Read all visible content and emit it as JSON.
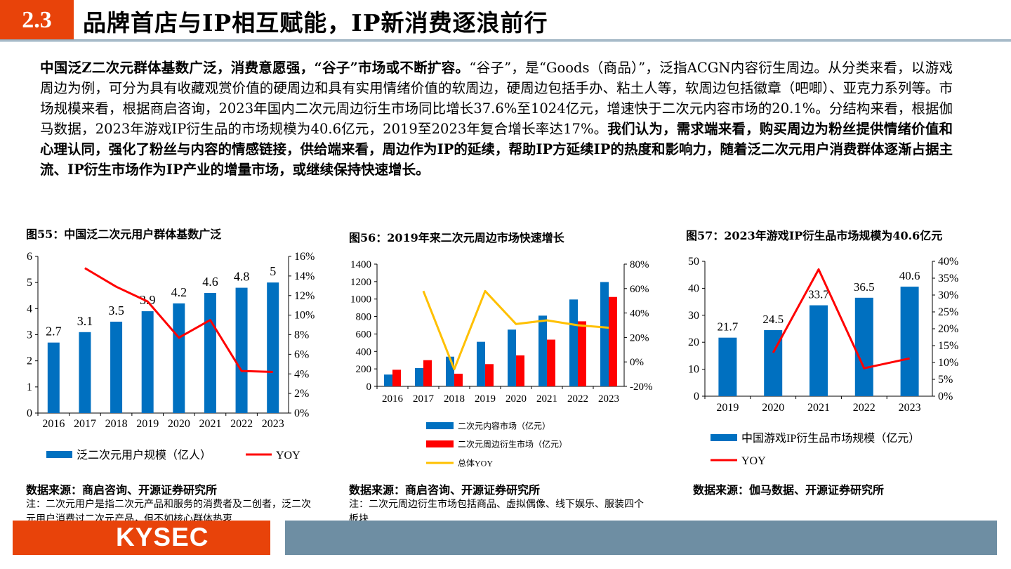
{
  "header": {
    "section": "2.3",
    "title": "品牌首店与IP相互赋能，IP新消费逐浪前行"
  },
  "body": {
    "bold_lead": "中国泛Z二次元群体基数广泛，消费意愿强，“谷子”市场或不断扩容。",
    "text": "“谷子”，是“Goods（商品）”，泛指ACGN内容衍生周边。从分类来看，以游戏周边为例，可分为具有收藏观赏价值的硬周边和具有实用情绪价值的软周边，硬周边包括手办、粘土人等，软周边包括徽章（吧唧）、亚克力系列等。市场规模来看，根据商启咨询，2023年国内二次元周边衍生市场同比增长37.6%至1024亿元，增速快于二次元内容市场的20.1%。分结构来看，根据伽马数据，2023年游戏IP衍生品的市场规模为40.6亿元，2019至2023年复合增长率达17%。",
    "bold_conclusion": "我们认为，需求端来看，购买周边为粉丝提供情绪价值和心理认同，强化了粉丝与内容的情感链接，供给端来看，周边作为IP的延续，帮助IP方延续IP的热度和影响力，随着泛二次元用户消费群体逐渐占据主流、IP衍生市场作为IP产业的增量市场，或继续保持快速增长。"
  },
  "figures": [
    {
      "source": "数据来源：商启咨询、开源证券研究所",
      "note": "注：二次元用户是指二次元产品和服务的消费者及二创者，泛二次元用户消费过二次元产品，但不如核心群体热衷"
    },
    {
      "source": "数据来源：商启咨询、开源证券研究所",
      "note": "注：二次元周边衍生市场包括商品、虚拟偶像、线下娱乐、服装四个板块"
    },
    {
      "source": "数据来源：伽马数据、开源证券研究所",
      "note": ""
    }
  ],
  "footer": {
    "logo": "KYSEC"
  },
  "colors": {
    "accent": "#e8430a",
    "blue": "#0070c0",
    "red": "#ff0000",
    "yellow": "#ffc000",
    "footer_gray": "#6e8ea3"
  },
  "chart_data": [
    {
      "type": "bar",
      "title": "图55：中国泛二次元用户群体基数广泛",
      "categories": [
        "2016",
        "2017",
        "2018",
        "2019",
        "2020",
        "2021",
        "2022",
        "2023"
      ],
      "ylim": [
        0,
        6
      ],
      "yticks": [
        0,
        1,
        2,
        3,
        4,
        5,
        6
      ],
      "y2lim": [
        0,
        16
      ],
      "y2ticks": [
        "0%",
        "2%",
        "4%",
        "6%",
        "8%",
        "10%",
        "12%",
        "14%",
        "16%"
      ],
      "series": [
        {
          "name": "泛二次元用户规模（亿人）",
          "kind": "bar",
          "axis": "left",
          "color": "#0070c0",
          "values": [
            2.7,
            3.1,
            3.5,
            3.9,
            4.2,
            4.6,
            4.8,
            5
          ],
          "labels": [
            "2.7",
            "3.1",
            "3.5",
            "3.9",
            "4.2",
            "4.6",
            "4.8",
            "5"
          ]
        },
        {
          "name": "YOY",
          "kind": "line",
          "axis": "right",
          "color": "#ff0000",
          "values": [
            null,
            14.8,
            12.9,
            11.4,
            7.7,
            9.5,
            4.3,
            4.2
          ]
        }
      ],
      "legend": "bottom",
      "grid": false
    },
    {
      "type": "bar",
      "title": "图56：2019年来二次元周边市场快速增长",
      "categories": [
        "2016",
        "2017",
        "2018",
        "2019",
        "2020",
        "2021",
        "2022",
        "2023"
      ],
      "ylim": [
        0,
        1400
      ],
      "yticks": [
        0,
        200,
        400,
        600,
        800,
        1000,
        1200,
        1400
      ],
      "y2lim": [
        -20,
        80
      ],
      "y2ticks": [
        "-20%",
        "0%",
        "20%",
        "40%",
        "60%",
        "80%"
      ],
      "series": [
        {
          "name": "二次元内容市场（亿元）",
          "kind": "bar",
          "axis": "left",
          "color": "#0070c0",
          "values": [
            135,
            210,
            340,
            510,
            650,
            810,
            995,
            1195
          ]
        },
        {
          "name": "二次元周边衍生市场（亿元）",
          "kind": "bar",
          "axis": "left",
          "color": "#ff0000",
          "values": [
            190,
            300,
            145,
            255,
            355,
            535,
            745,
            1024
          ]
        },
        {
          "name": "总体YOY",
          "kind": "line",
          "axis": "right",
          "color": "#ffc000",
          "values": [
            null,
            58,
            -6,
            58,
            31,
            34,
            30,
            28
          ]
        }
      ],
      "legend": "bottom",
      "grid": false
    },
    {
      "type": "bar",
      "title": "图57：2023年游戏IP衍生品市场规模为40.6亿元",
      "categories": [
        "2019",
        "2020",
        "2021",
        "2022",
        "2023"
      ],
      "ylim": [
        0,
        50
      ],
      "yticks": [
        0,
        10,
        20,
        30,
        40,
        50
      ],
      "y2lim": [
        0,
        40
      ],
      "y2ticks": [
        "0%",
        "5%",
        "10%",
        "15%",
        "20%",
        "25%",
        "30%",
        "35%",
        "40%"
      ],
      "series": [
        {
          "name": "中国游戏IP衍生品市场规模（亿元）",
          "kind": "bar",
          "axis": "left",
          "color": "#0070c0",
          "values": [
            21.7,
            24.5,
            33.7,
            36.5,
            40.6
          ],
          "labels": [
            "21.7",
            "24.5",
            "33.7",
            "36.5",
            "40.6"
          ]
        },
        {
          "name": "YOY",
          "kind": "line",
          "axis": "right",
          "color": "#ff0000",
          "values": [
            null,
            12.9,
            37.6,
            8.3,
            11.2
          ]
        }
      ],
      "legend": "bottom",
      "grid": false
    }
  ]
}
